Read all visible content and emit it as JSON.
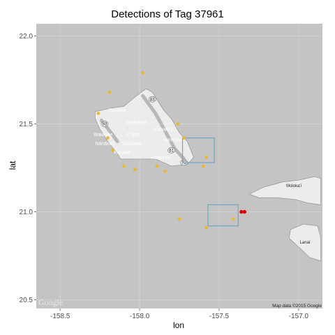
{
  "title": "Detections of Tag 37961",
  "chart_data": {
    "type": "scatter",
    "title": "Detections of Tag 37961",
    "xlabel": "lon",
    "ylabel": "lat",
    "xlim": [
      -158.65,
      -156.85
    ],
    "ylim": [
      20.45,
      22.07
    ],
    "x_ticks": [
      {
        "value": -158.5,
        "label": "-158.5"
      },
      {
        "value": -158.0,
        "label": "-158.0"
      },
      {
        "value": -157.5,
        "label": "-157.5"
      },
      {
        "value": -157.0,
        "label": "-157.0"
      }
    ],
    "y_ticks": [
      {
        "value": 20.5,
        "label": "20.5"
      },
      {
        "value": 21.0,
        "label": "21.0"
      },
      {
        "value": 21.5,
        "label": "21.5"
      },
      {
        "value": 22.0,
        "label": "22.0"
      }
    ],
    "grid": true,
    "receivers": [
      {
        "lon": -157.98,
        "lat": 21.79
      },
      {
        "lon": -158.19,
        "lat": 21.68
      },
      {
        "lon": -158.26,
        "lat": 21.56
      },
      {
        "lon": -157.76,
        "lat": 21.5
      },
      {
        "lon": -157.72,
        "lat": 21.42
      },
      {
        "lon": -158.2,
        "lat": 21.42
      },
      {
        "lon": -158.17,
        "lat": 21.35
      },
      {
        "lon": -157.58,
        "lat": 21.31
      },
      {
        "lon": -157.6,
        "lat": 21.26
      },
      {
        "lon": -158.1,
        "lat": 21.26
      },
      {
        "lon": -157.89,
        "lat": 21.26
      },
      {
        "lon": -158.03,
        "lat": 21.24
      },
      {
        "lon": -157.84,
        "lat": 21.23
      },
      {
        "lon": -157.75,
        "lat": 20.96
      },
      {
        "lon": -157.41,
        "lat": 20.96
      },
      {
        "lon": -157.58,
        "lat": 20.91
      }
    ],
    "detections": [
      {
        "lon": -157.36,
        "lat": 21.0
      },
      {
        "lon": -157.34,
        "lat": 21.0
      }
    ],
    "boxes": [
      {
        "lon_min": -157.73,
        "lon_max": -157.53,
        "lat_min": 21.28,
        "lat_max": 21.42
      },
      {
        "lon_min": -157.57,
        "lon_max": -157.38,
        "lat_min": 20.92,
        "lat_max": 21.04
      }
    ],
    "colors": {
      "panel": "#c4c4c4",
      "receiver": "#e8b92a",
      "detection": "#dd0000",
      "box": "#6ea6c0",
      "land": "#ececec"
    }
  },
  "map": {
    "places": [
      {
        "name": "Waialua",
        "lon": -158.14,
        "lat": 21.57,
        "dark": false
      },
      {
        "name": "Wahiawā",
        "lon": -158.02,
        "lat": 21.5,
        "dark": false
      },
      {
        "name": "Kahalu'u",
        "lon": -157.85,
        "lat": 21.46,
        "dark": false
      },
      {
        "name": "O'ahu",
        "lon": -158.04,
        "lat": 21.43,
        "dark": false
      },
      {
        "name": "Waianae",
        "lon": -158.23,
        "lat": 21.43,
        "dark": false
      },
      {
        "name": "Kaneohe",
        "lon": -157.79,
        "lat": 21.4,
        "dark": false
      },
      {
        "name": "Nānākuli",
        "lon": -158.22,
        "lat": 21.38,
        "dark": false
      },
      {
        "name": "Waipahu",
        "lon": -158.05,
        "lat": 21.38,
        "dark": false
      },
      {
        "name": "Kapolei",
        "lon": -158.11,
        "lat": 21.33,
        "dark": false
      },
      {
        "name": "Honolulu",
        "lon": -157.87,
        "lat": 21.3,
        "dark": false
      },
      {
        "name": "Moloka'i",
        "lon": -157.03,
        "lat": 21.14,
        "dark": true
      },
      {
        "name": "Lanai",
        "lon": -156.96,
        "lat": 20.82,
        "dark": true
      }
    ],
    "road_shields": [
      {
        "label": "83",
        "lon": -157.92,
        "lat": 21.64
      },
      {
        "label": "93",
        "lon": -158.22,
        "lat": 21.5
      },
      {
        "label": "61",
        "lon": -157.8,
        "lat": 21.35
      },
      {
        "label": "72",
        "lon": -157.72,
        "lat": 21.28
      }
    ],
    "google_logo": "Google",
    "credit": "Map data ©2015 Google"
  }
}
